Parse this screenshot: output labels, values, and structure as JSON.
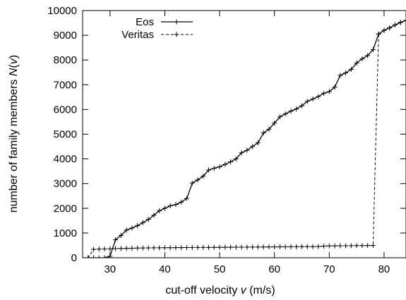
{
  "chart_data": {
    "type": "line",
    "xlabel_prefix": "cut-off velocity ",
    "xlabel_symbol": "v",
    "xlabel_suffix": " (m/s)",
    "ylabel_prefix": "number of family members ",
    "ylabel_symbol": "N",
    "ylabel_suffix": "(",
    "ylabel_symbol2": "v",
    "ylabel_suffix2": ")",
    "xlim": [
      25,
      84
    ],
    "ylim": [
      0,
      10000
    ],
    "x_ticks": [
      30,
      40,
      50,
      60,
      70,
      80
    ],
    "y_ticks": [
      0,
      1000,
      2000,
      3000,
      4000,
      5000,
      6000,
      7000,
      8000,
      9000,
      10000
    ],
    "grid": false,
    "legend_position": "top-left",
    "series": [
      {
        "name": "Eos",
        "style": "solid",
        "color": "#000000",
        "x": [
          25,
          26,
          27,
          28,
          29,
          30,
          31,
          32,
          33,
          34,
          35,
          36,
          37,
          38,
          39,
          40,
          41,
          42,
          43,
          44,
          45,
          46,
          47,
          48,
          49,
          50,
          51,
          52,
          53,
          54,
          55,
          56,
          57,
          58,
          59,
          60,
          61,
          62,
          63,
          64,
          65,
          66,
          67,
          68,
          69,
          70,
          71,
          72,
          73,
          74,
          75,
          76,
          77,
          78,
          79,
          80,
          81,
          82,
          83,
          84
        ],
        "y": [
          0,
          0,
          0,
          0,
          0,
          60,
          730,
          900,
          1120,
          1200,
          1300,
          1420,
          1550,
          1720,
          1900,
          2000,
          2100,
          2150,
          2250,
          2400,
          3020,
          3150,
          3300,
          3550,
          3620,
          3680,
          3780,
          3880,
          4000,
          4250,
          4350,
          4500,
          4650,
          5050,
          5200,
          5450,
          5700,
          5820,
          5930,
          6020,
          6150,
          6330,
          6420,
          6520,
          6650,
          6720,
          6900,
          7380,
          7480,
          7620,
          7880,
          8050,
          8180,
          8420,
          9050,
          9200,
          9300,
          9420,
          9520,
          9600
        ]
      },
      {
        "name": "Veritas",
        "style": "dashed",
        "color": "#000000",
        "x": [
          25,
          26,
          27,
          28,
          29,
          30,
          31,
          32,
          33,
          34,
          35,
          36,
          37,
          38,
          39,
          40,
          41,
          42,
          43,
          44,
          45,
          46,
          47,
          48,
          49,
          50,
          51,
          52,
          53,
          54,
          55,
          56,
          57,
          58,
          59,
          60,
          61,
          62,
          63,
          64,
          65,
          66,
          67,
          68,
          69,
          70,
          71,
          72,
          73,
          74,
          75,
          76,
          77,
          78,
          79,
          80,
          81,
          82,
          83,
          84
        ],
        "y": [
          0,
          0,
          340,
          350,
          355,
          360,
          370,
          375,
          380,
          385,
          390,
          395,
          400,
          402,
          404,
          405,
          407,
          408,
          410,
          412,
          414,
          415,
          417,
          418,
          420,
          422,
          424,
          425,
          427,
          428,
          430,
          432,
          434,
          435,
          437,
          438,
          440,
          442,
          444,
          445,
          447,
          448,
          450,
          455,
          470,
          480,
          482,
          484,
          486,
          488,
          490,
          492,
          494,
          496,
          9050,
          9200,
          9300,
          9420,
          9520,
          9600
        ]
      }
    ]
  }
}
